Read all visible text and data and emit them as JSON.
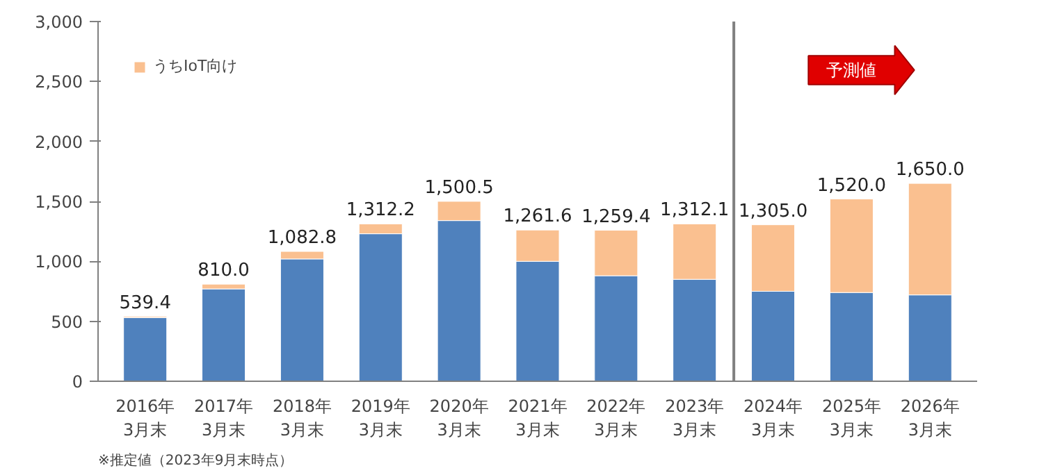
{
  "chart_data": {
    "type": "bar",
    "stacked": true,
    "categories": [
      "2016年\n3月末",
      "2017年\n3月末",
      "2018年\n3月末",
      "2019年\n3月末",
      "2020年\n3月末",
      "2021年\n3月末",
      "2022年\n3月末",
      "2023年\n3月末",
      "2024年\n3月末",
      "2025年\n3月末",
      "2026年\n3月末"
    ],
    "series": [
      {
        "color": "#4f81bd",
        "values": [
          530,
          770,
          1020,
          1230,
          1340,
          1000,
          880,
          850,
          750,
          740,
          720
        ]
      },
      {
        "name": "うちIoT向け",
        "color": "#fac090",
        "values": [
          9.4,
          40.0,
          62.8,
          82.2,
          160.5,
          261.6,
          379.4,
          462.1,
          555.0,
          780.0,
          930.0
        ]
      }
    ],
    "totals": [
      "539.4",
      "810.0",
      "1,082.8",
      "1,312.2",
      "1,500.5",
      "1,261.6",
      "1,259.4",
      "1,312.1",
      "1,305.0",
      "1,520.0",
      "1,650.0"
    ],
    "ylim": [
      0,
      3000
    ],
    "yticks": [
      0,
      500,
      {
        "value": 1000,
        "label": "1,000"
      },
      {
        "value": 1500,
        "label": "1,500"
      },
      {
        "value": 2000,
        "label": "2,000"
      },
      {
        "value": 2500,
        "label": "2,500"
      },
      {
        "value": 3000,
        "label": "3,000"
      }
    ],
    "annotations": [
      "※推定値（2023年9月末時点）",
      "予測値"
    ],
    "grid": false,
    "legend": "top left"
  }
}
